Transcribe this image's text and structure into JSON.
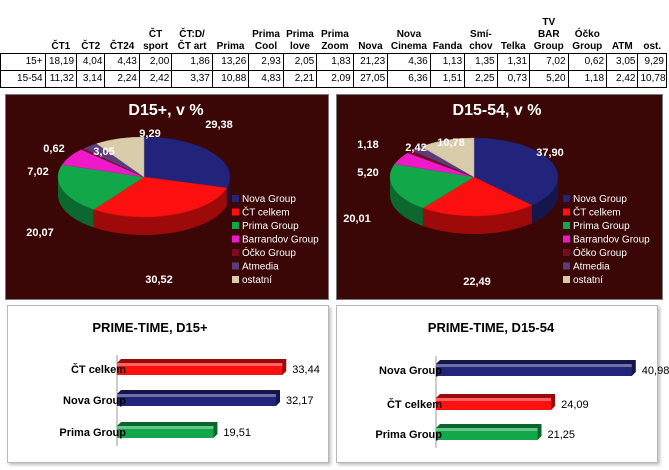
{
  "table": {
    "headers": [
      "",
      "ČT1",
      "ČT2",
      "ČT24",
      "ČT sport",
      "ČT:D/ ČT art",
      "Prima",
      "Prima Cool",
      "Prima love",
      "Prima Zoom",
      "Nova",
      "Nova Cinema",
      "Fanda",
      "Smí-chov",
      "Telka",
      "TV BAR Group",
      "Óčko Group",
      "ATM",
      "ost."
    ],
    "rows": [
      {
        "label": "15+",
        "values": [
          "18,19",
          "4,04",
          "4,43",
          "2,00",
          "1,86",
          "13,26",
          "2,93",
          "2,05",
          "1,83",
          "21,23",
          "4,36",
          "1,13",
          "1,35",
          "1,31",
          "7,02",
          "0,62",
          "3,05",
          "9,29"
        ]
      },
      {
        "label": "15-54",
        "values": [
          "11,32",
          "3,14",
          "2,24",
          "2,42",
          "3,37",
          "10,88",
          "4,83",
          "2,21",
          "2,09",
          "27,05",
          "6,36",
          "1,51",
          "2,25",
          "0,73",
          "5,20",
          "1,18",
          "2,42",
          "10,78"
        ]
      }
    ]
  },
  "legend": [
    "Nova Group",
    "ČT celkem",
    "Prima Group",
    "Barrandov Group",
    "Óčko Group",
    "Atmedia",
    "ostatní"
  ],
  "colors": {
    "nova": "#22237a",
    "ct": "#ff1010",
    "prima": "#12a84a",
    "barrandov": "#ee1ac9",
    "ocko": "#7a0c20",
    "atmedia": "#5c3d7a",
    "ostatni": "#d8ccaa",
    "panel_bg": "#3a0606"
  },
  "chart_data": [
    {
      "type": "pie",
      "title": "D15+, v %",
      "labels": [
        "Nova Group",
        "ČT celkem",
        "Prima Group",
        "Barrandov Group",
        "Óčko Group",
        "Atmedia",
        "ostatní"
      ],
      "values": [
        29.38,
        30.52,
        20.07,
        7.02,
        0.62,
        3.05,
        9.29
      ],
      "value_labels": [
        "29,38",
        "30,52",
        "20,07",
        "7,02",
        "0,62",
        "3,05",
        "9,29"
      ],
      "legend_position": "right"
    },
    {
      "type": "pie",
      "title": "D15-54, v %",
      "labels": [
        "Nova Group",
        "ČT celkem",
        "Prima Group",
        "Barrandov Group",
        "Óčko Group",
        "Atmedia",
        "ostatní"
      ],
      "values": [
        37.9,
        22.49,
        20.01,
        5.2,
        1.18,
        2.42,
        10.78
      ],
      "value_labels": [
        "37,90",
        "22,49",
        "20,01",
        "5,20",
        "1,18",
        "2,42",
        "10,78"
      ],
      "legend_position": "right"
    },
    {
      "type": "bar",
      "orientation": "horizontal",
      "title": "PRIME-TIME, D15+",
      "categories": [
        "ČT celkem",
        "Nova Group",
        "Prima Group"
      ],
      "values": [
        33.44,
        32.17,
        19.51
      ],
      "value_labels": [
        "33,44",
        "32,17",
        "19,51"
      ],
      "xlim": [
        0,
        35
      ]
    },
    {
      "type": "bar",
      "orientation": "horizontal",
      "title": "PRIME-TIME, D15-54",
      "categories": [
        "Nova Group",
        "ČT celkem",
        "Prima Group"
      ],
      "values": [
        40.98,
        24.09,
        21.25
      ],
      "value_labels": [
        "40,98",
        "24,09",
        "21,25"
      ],
      "xlim": [
        0,
        45
      ]
    }
  ]
}
